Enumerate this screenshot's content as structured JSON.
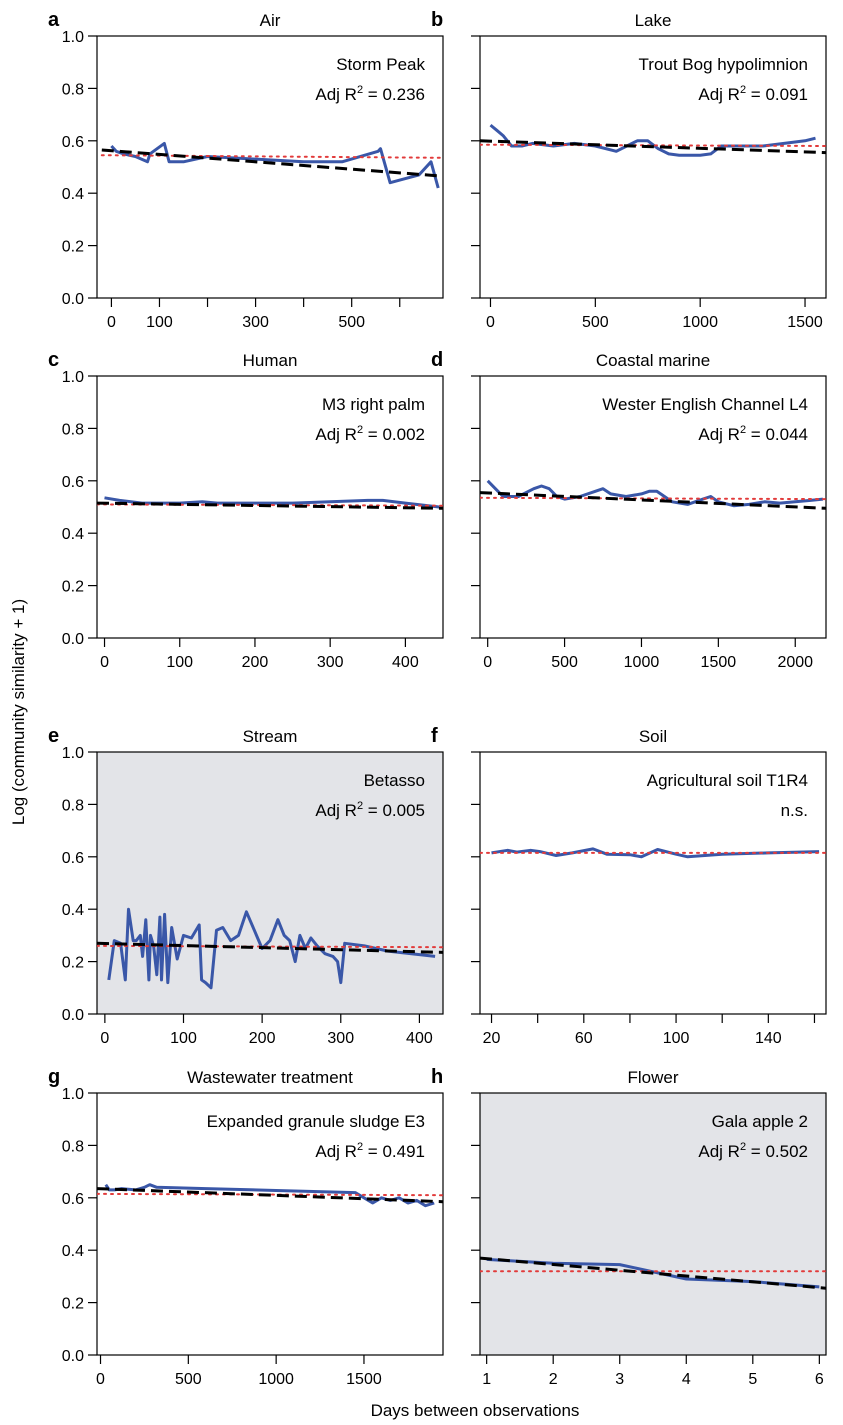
{
  "figure": {
    "ylabel": "Log (community similarity + 1)",
    "xlabel": "Days between observations"
  },
  "colors": {
    "observed": "#3a57a8",
    "fit": "#000000",
    "null_line": "#e23b3b",
    "shaded_panel": "#e3e4e8"
  },
  "chart_data": [
    {
      "type": "line",
      "panel_letter": "a",
      "title": "Air",
      "site": "Storm Peak",
      "stat_prefix": "Adj R",
      "stat_value": " = 0.236",
      "shaded": false,
      "xlim": [
        -30,
        690
      ],
      "ylim": [
        0,
        1
      ],
      "xticks": [
        0,
        100,
        200,
        300,
        400,
        500,
        600
      ],
      "xtick_labels": [
        "0",
        "100",
        "",
        "300",
        "",
        "500",
        ""
      ],
      "yticks": [
        0,
        0.2,
        0.4,
        0.6,
        0.8,
        1.0
      ],
      "ytick_labels": [
        "0.0",
        "0.2",
        "0.4",
        "0.6",
        "0.8",
        "1.0"
      ],
      "series": [
        {
          "role": "observed",
          "x": [
            0,
            10,
            25,
            50,
            75,
            80,
            110,
            120,
            150,
            200,
            300,
            400,
            480,
            555,
            560,
            580,
            600,
            640,
            665,
            680
          ],
          "y": [
            0.58,
            0.56,
            0.55,
            0.54,
            0.52,
            0.55,
            0.59,
            0.52,
            0.52,
            0.54,
            0.53,
            0.52,
            0.52,
            0.56,
            0.57,
            0.44,
            0.45,
            0.47,
            0.52,
            0.42
          ]
        },
        {
          "role": "fit",
          "x": [
            -20,
            690
          ],
          "y": [
            0.565,
            0.465
          ]
        },
        {
          "role": "null",
          "x": [
            -20,
            690
          ],
          "y": [
            0.545,
            0.535
          ]
        }
      ]
    },
    {
      "type": "line",
      "panel_letter": "b",
      "title": "Lake",
      "site": "Trout Bog hypolimnion",
      "stat_prefix": "Adj R",
      "stat_value": " = 0.091",
      "shaded": false,
      "xlim": [
        -50,
        1600
      ],
      "ylim": [
        0,
        1
      ],
      "xticks": [
        0,
        500,
        1000,
        1500
      ],
      "xtick_labels": [
        "0",
        "500",
        "1000",
        "1500"
      ],
      "yticks": [
        0,
        0.2,
        0.4,
        0.6,
        0.8,
        1.0
      ],
      "ytick_labels": [
        "",
        "",
        "",
        "",
        "",
        ""
      ],
      "series": [
        {
          "role": "observed",
          "x": [
            0,
            30,
            60,
            100,
            150,
            200,
            300,
            400,
            500,
            600,
            650,
            700,
            750,
            800,
            850,
            900,
            1000,
            1050,
            1100,
            1200,
            1300,
            1400,
            1500,
            1550
          ],
          "y": [
            0.66,
            0.64,
            0.62,
            0.58,
            0.58,
            0.59,
            0.58,
            0.59,
            0.58,
            0.56,
            0.58,
            0.6,
            0.6,
            0.57,
            0.55,
            0.545,
            0.545,
            0.55,
            0.58,
            0.58,
            0.58,
            0.59,
            0.6,
            0.61
          ]
        },
        {
          "role": "fit",
          "x": [
            -50,
            1600
          ],
          "y": [
            0.6,
            0.555
          ]
        },
        {
          "role": "null",
          "x": [
            -50,
            1600
          ],
          "y": [
            0.585,
            0.58
          ]
        }
      ]
    },
    {
      "type": "line",
      "panel_letter": "c",
      "title": "Human",
      "site": "M3 right palm",
      "stat_prefix": "Adj R",
      "stat_value": " = 0.002",
      "shaded": false,
      "xlim": [
        -10,
        450
      ],
      "ylim": [
        0,
        1
      ],
      "xticks": [
        0,
        100,
        200,
        300,
        400
      ],
      "xtick_labels": [
        "0",
        "100",
        "200",
        "300",
        "400"
      ],
      "yticks": [
        0,
        0.2,
        0.4,
        0.6,
        0.8,
        1.0
      ],
      "ytick_labels": [
        "0.0",
        "0.2",
        "0.4",
        "0.6",
        "0.8",
        "1.0"
      ],
      "series": [
        {
          "role": "observed",
          "x": [
            0,
            20,
            50,
            100,
            130,
            150,
            200,
            250,
            300,
            350,
            370,
            400,
            445
          ],
          "y": [
            0.535,
            0.525,
            0.515,
            0.515,
            0.52,
            0.515,
            0.515,
            0.515,
            0.52,
            0.525,
            0.525,
            0.515,
            0.5
          ]
        },
        {
          "role": "fit",
          "x": [
            -10,
            450
          ],
          "y": [
            0.515,
            0.495
          ]
        },
        {
          "role": "null",
          "x": [
            -10,
            450
          ],
          "y": [
            0.51,
            0.505
          ]
        }
      ]
    },
    {
      "type": "line",
      "panel_letter": "d",
      "title": "Coastal marine",
      "site": "Wester English Channel L4",
      "stat_prefix": "Adj R",
      "stat_value": " = 0.044",
      "shaded": false,
      "xlim": [
        -50,
        2200
      ],
      "ylim": [
        0,
        1
      ],
      "xticks": [
        0,
        500,
        1000,
        1500,
        2000
      ],
      "xtick_labels": [
        "0",
        "500",
        "1000",
        "1500",
        "2000"
      ],
      "yticks": [
        0,
        0.2,
        0.4,
        0.6,
        0.8,
        1.0
      ],
      "ytick_labels": [
        "",
        "",
        "",
        "",
        "",
        ""
      ],
      "series": [
        {
          "role": "observed",
          "x": [
            0,
            50,
            100,
            200,
            300,
            350,
            400,
            450,
            500,
            600,
            700,
            750,
            800,
            900,
            1000,
            1050,
            1100,
            1150,
            1200,
            1300,
            1400,
            1450,
            1500,
            1600,
            1700,
            1800,
            1900,
            2000,
            2100,
            2180
          ],
          "y": [
            0.6,
            0.57,
            0.54,
            0.54,
            0.57,
            0.58,
            0.57,
            0.54,
            0.53,
            0.54,
            0.56,
            0.57,
            0.55,
            0.54,
            0.55,
            0.56,
            0.56,
            0.54,
            0.52,
            0.51,
            0.53,
            0.54,
            0.52,
            0.505,
            0.51,
            0.52,
            0.515,
            0.52,
            0.525,
            0.53
          ]
        },
        {
          "role": "fit",
          "x": [
            -50,
            2200
          ],
          "y": [
            0.555,
            0.495
          ]
        },
        {
          "role": "null",
          "x": [
            -50,
            2200
          ],
          "y": [
            0.535,
            0.53
          ]
        }
      ]
    },
    {
      "type": "line",
      "panel_letter": "e",
      "title": "Stream",
      "site": "Betasso",
      "stat_prefix": "Adj R",
      "stat_value": " = 0.005",
      "shaded": true,
      "xlim": [
        -10,
        430
      ],
      "ylim": [
        0,
        1
      ],
      "xticks": [
        0,
        100,
        200,
        300,
        400
      ],
      "xtick_labels": [
        "0",
        "100",
        "200",
        "300",
        "400"
      ],
      "yticks": [
        0,
        0.2,
        0.4,
        0.6,
        0.8,
        1.0
      ],
      "ytick_labels": [
        "0.0",
        "0.2",
        "0.4",
        "0.6",
        "0.8",
        "1.0"
      ],
      "series": [
        {
          "role": "observed",
          "x": [
            5,
            12,
            20,
            26,
            30,
            36,
            40,
            45,
            48,
            52,
            56,
            58,
            62,
            66,
            70,
            72,
            76,
            80,
            85,
            92,
            100,
            110,
            120,
            123,
            128,
            135,
            142,
            150,
            160,
            170,
            180,
            190,
            200,
            210,
            220,
            228,
            235,
            242,
            248,
            255,
            262,
            270,
            280,
            290,
            296,
            300,
            305,
            330,
            360,
            390,
            420
          ],
          "y": [
            0.13,
            0.28,
            0.27,
            0.13,
            0.4,
            0.28,
            0.28,
            0.3,
            0.22,
            0.36,
            0.13,
            0.3,
            0.26,
            0.15,
            0.37,
            0.13,
            0.38,
            0.12,
            0.33,
            0.21,
            0.3,
            0.29,
            0.34,
            0.13,
            0.12,
            0.1,
            0.32,
            0.33,
            0.28,
            0.3,
            0.39,
            0.32,
            0.25,
            0.28,
            0.36,
            0.3,
            0.28,
            0.2,
            0.3,
            0.25,
            0.29,
            0.26,
            0.23,
            0.22,
            0.2,
            0.12,
            0.27,
            0.26,
            0.24,
            0.23,
            0.22
          ]
        },
        {
          "role": "fit",
          "x": [
            -10,
            430
          ],
          "y": [
            0.27,
            0.235
          ]
        },
        {
          "role": "null",
          "x": [
            -10,
            430
          ],
          "y": [
            0.26,
            0.255
          ]
        }
      ]
    },
    {
      "type": "line",
      "panel_letter": "f",
      "title": "Soil",
      "site": "Agricultural soil T1R4",
      "stat_text": "n.s.",
      "shaded": false,
      "xlim": [
        15,
        165
      ],
      "ylim": [
        0,
        1
      ],
      "xticks": [
        20,
        40,
        60,
        80,
        100,
        120,
        140,
        160
      ],
      "xtick_labels": [
        "20",
        "",
        "60",
        "",
        "100",
        "",
        "140",
        ""
      ],
      "yticks": [
        0,
        0.2,
        0.4,
        0.6,
        0.8,
        1.0
      ],
      "ytick_labels": [
        "",
        "",
        "",
        "",
        "",
        ""
      ],
      "series": [
        {
          "role": "observed",
          "x": [
            20,
            27,
            31,
            37,
            41,
            48,
            55,
            64,
            70,
            80,
            85,
            92,
            100,
            105,
            120,
            140,
            162
          ],
          "y": [
            0.615,
            0.625,
            0.618,
            0.625,
            0.62,
            0.605,
            0.615,
            0.63,
            0.61,
            0.608,
            0.6,
            0.628,
            0.61,
            0.6,
            0.61,
            0.615,
            0.62
          ]
        },
        {
          "role": "null",
          "x": [
            15,
            165
          ],
          "y": [
            0.615,
            0.615
          ]
        }
      ]
    },
    {
      "type": "line",
      "panel_letter": "g",
      "title": "Wastewater treatment",
      "site": "Expanded granule sludge E3",
      "stat_prefix": "Adj R",
      "stat_value": " = 0.491",
      "shaded": false,
      "xlim": [
        -20,
        1950
      ],
      "ylim": [
        0,
        1
      ],
      "xticks": [
        0,
        500,
        1000,
        1500
      ],
      "xtick_labels": [
        "0",
        "500",
        "1000",
        "1500"
      ],
      "yticks": [
        0,
        0.2,
        0.4,
        0.6,
        0.8,
        1.0
      ],
      "ytick_labels": [
        "0.0",
        "0.2",
        "0.4",
        "0.6",
        "0.8",
        "1.0"
      ],
      "series": [
        {
          "role": "observed",
          "x": [
            30,
            50,
            80,
            120,
            200,
            250,
            280,
            320,
            600,
            1000,
            1450,
            1500,
            1550,
            1600,
            1650,
            1700,
            1750,
            1800,
            1850,
            1900
          ],
          "y": [
            0.65,
            0.63,
            0.63,
            0.635,
            0.63,
            0.64,
            0.65,
            0.64,
            0.635,
            0.628,
            0.62,
            0.6,
            0.58,
            0.6,
            0.59,
            0.6,
            0.58,
            0.59,
            0.57,
            0.58
          ]
        },
        {
          "role": "fit",
          "x": [
            -20,
            1950
          ],
          "y": [
            0.635,
            0.585
          ]
        },
        {
          "role": "null",
          "x": [
            -20,
            1950
          ],
          "y": [
            0.615,
            0.61
          ]
        }
      ]
    },
    {
      "type": "line",
      "panel_letter": "h",
      "title": "Flower",
      "site": "Gala apple 2",
      "stat_prefix": "Adj R",
      "stat_value": " = 0.502",
      "shaded": true,
      "xlim": [
        0.9,
        6.1
      ],
      "ylim": [
        0,
        1
      ],
      "xticks": [
        1,
        2,
        3,
        4,
        5,
        6
      ],
      "xtick_labels": [
        "1",
        "2",
        "3",
        "4",
        "5",
        "6"
      ],
      "yticks": [
        0,
        0.2,
        0.4,
        0.6,
        0.8,
        1.0
      ],
      "ytick_labels": [
        "",
        "",
        "",
        "",
        "",
        ""
      ],
      "series": [
        {
          "role": "observed",
          "x": [
            1,
            2,
            3,
            4,
            5,
            6
          ],
          "y": [
            0.365,
            0.35,
            0.345,
            0.29,
            0.28,
            0.26
          ]
        },
        {
          "role": "fit",
          "x": [
            0.9,
            6.1
          ],
          "y": [
            0.37,
            0.255
          ]
        },
        {
          "role": "null",
          "x": [
            0.9,
            6.1
          ],
          "y": [
            0.32,
            0.32
          ]
        }
      ]
    }
  ]
}
